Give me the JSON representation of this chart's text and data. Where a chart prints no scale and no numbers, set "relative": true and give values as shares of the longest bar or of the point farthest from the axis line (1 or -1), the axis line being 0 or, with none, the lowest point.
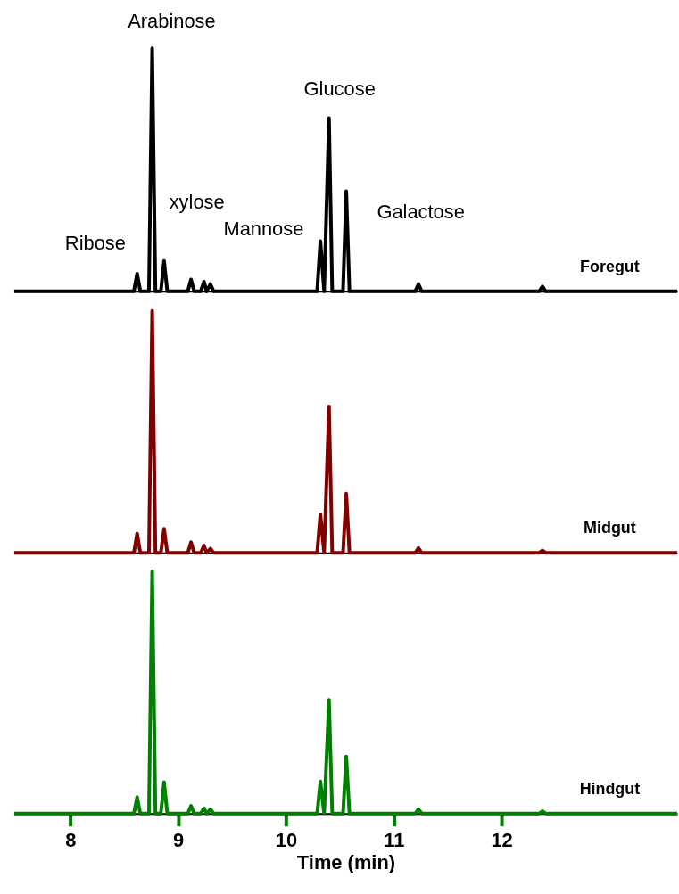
{
  "chart_data": [
    {
      "type": "line",
      "relative": true,
      "tick_labels": false,
      "legend": false,
      "xlim": [
        7.48,
        13.63
      ],
      "xticks": [
        8,
        9,
        10,
        11,
        12
      ],
      "x": [
        7.48,
        8.59,
        8.62,
        8.65,
        8.73,
        8.76,
        8.79,
        8.84,
        8.87,
        8.9,
        9.09,
        9.12,
        9.15,
        9.21,
        9.24,
        9.265,
        9.3,
        9.33,
        10.29,
        10.32,
        10.355,
        10.4,
        10.43,
        10.53,
        10.56,
        10.59,
        11.2,
        11.23,
        11.26,
        12.35,
        12.38,
        12.41,
        13.63
      ],
      "series": [
        {
          "name": "Foregut",
          "color": "#000000",
          "values": [
            0,
            0,
            0.073,
            0,
            0,
            1,
            0,
            0,
            0.125,
            0,
            0,
            0.049,
            0,
            0,
            0.04,
            0,
            0.03,
            0,
            0,
            0.207,
            0,
            0.713,
            0,
            0,
            0.412,
            0,
            0,
            0.03,
            0,
            0,
            0.02,
            0,
            0
          ]
        }
      ],
      "annotations": [
        {
          "text": "Ribose",
          "x": 8.62,
          "y": 0.073
        },
        {
          "text": "Arabinose",
          "x": 8.76,
          "y": 1
        },
        {
          "text": "xylose",
          "x": 8.87,
          "y": 0.125
        },
        {
          "text": "Mannose",
          "x": 10.32,
          "y": 0.207
        },
        {
          "text": "Glucose",
          "x": 10.4,
          "y": 0.713
        },
        {
          "text": "Galactose",
          "x": 10.56,
          "y": 0.412
        }
      ]
    },
    {
      "type": "line",
      "relative": true,
      "tick_labels": false,
      "legend": false,
      "xlim": [
        7.48,
        13.63
      ],
      "xticks": [
        8,
        9,
        10,
        11,
        12
      ],
      "x": [
        7.48,
        8.59,
        8.62,
        8.65,
        8.73,
        8.76,
        8.79,
        8.84,
        8.87,
        8.9,
        9.09,
        9.12,
        9.15,
        9.21,
        9.24,
        9.265,
        9.3,
        9.33,
        10.29,
        10.32,
        10.355,
        10.4,
        10.43,
        10.53,
        10.56,
        10.59,
        11.2,
        11.23,
        11.26,
        12.35,
        12.38,
        12.41,
        13.63
      ],
      "series": [
        {
          "name": "Midgut",
          "color": "#800000",
          "values": [
            0,
            0,
            0.08,
            0,
            0,
            1,
            0,
            0,
            0.1,
            0,
            0,
            0.044,
            0,
            0,
            0.03,
            0,
            0.018,
            0,
            0,
            0.16,
            0,
            0.605,
            0,
            0,
            0.245,
            0,
            0,
            0.02,
            0,
            0,
            0.01,
            0,
            0
          ]
        }
      ]
    },
    {
      "type": "line",
      "relative": true,
      "legend": false,
      "xlim": [
        7.48,
        13.63
      ],
      "xticks": [
        8,
        9,
        10,
        11,
        12
      ],
      "xlabel": "Time (min)",
      "x": [
        7.48,
        8.59,
        8.62,
        8.65,
        8.73,
        8.76,
        8.79,
        8.84,
        8.87,
        8.9,
        9.09,
        9.12,
        9.15,
        9.21,
        9.24,
        9.265,
        9.3,
        9.33,
        10.29,
        10.32,
        10.355,
        10.4,
        10.43,
        10.53,
        10.56,
        10.59,
        11.2,
        11.23,
        11.26,
        12.35,
        12.38,
        12.41,
        13.63
      ],
      "series": [
        {
          "name": "Hindgut",
          "color": "#008000",
          "values": [
            0,
            0,
            0.068,
            0,
            0,
            1,
            0,
            0,
            0.13,
            0,
            0,
            0.032,
            0,
            0,
            0.022,
            0,
            0.018,
            0,
            0,
            0.133,
            0,
            0.47,
            0,
            0,
            0.236,
            0,
            0,
            0.018,
            0,
            0,
            0.01,
            0,
            0
          ]
        }
      ]
    }
  ]
}
